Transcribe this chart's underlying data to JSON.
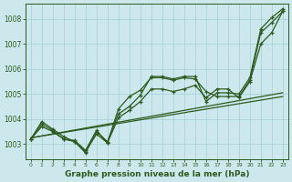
{
  "xlabel": "Graphe pression niveau de la mer (hPa)",
  "bg_color": "#cce8ec",
  "grid_color": "#aad4d8",
  "line_color": "#2d5a1e",
  "ylim": [
    1002.4,
    1008.6
  ],
  "xlim": [
    -0.5,
    23.5
  ],
  "yticks": [
    1003,
    1004,
    1005,
    1006,
    1007,
    1008
  ],
  "xticks": [
    0,
    1,
    2,
    3,
    4,
    5,
    6,
    7,
    8,
    9,
    10,
    11,
    12,
    13,
    14,
    15,
    16,
    17,
    18,
    19,
    20,
    21,
    22,
    23
  ],
  "series_with_markers": [
    [
      1003.2,
      1003.8,
      1003.55,
      1003.2,
      1003.15,
      1002.75,
      1003.55,
      1003.05,
      1004.4,
      1004.9,
      1005.15,
      1005.65,
      1005.65,
      1005.55,
      1005.65,
      1005.6,
      1005.1,
      1004.9,
      1004.9,
      1004.9,
      1005.55,
      1007.45,
      1007.85,
      1008.3
    ],
    [
      1003.2,
      1003.7,
      1003.5,
      1003.2,
      1003.1,
      1002.7,
      1003.4,
      1003.05,
      1004.05,
      1004.35,
      1004.7,
      1005.2,
      1005.2,
      1005.1,
      1005.2,
      1005.35,
      1004.85,
      1005.2,
      1005.2,
      1004.85,
      1005.5,
      1007.0,
      1007.45,
      1008.3
    ],
    [
      1003.2,
      1003.9,
      1003.6,
      1003.3,
      1003.1,
      1002.65,
      1003.5,
      1003.1,
      1004.2,
      1004.5,
      1004.95,
      1005.7,
      1005.7,
      1005.6,
      1005.7,
      1005.7,
      1004.7,
      1005.05,
      1005.05,
      1005.0,
      1005.65,
      1007.6,
      1008.05,
      1008.4
    ]
  ],
  "trend_lines": [
    [
      [
        0,
        23
      ],
      [
        1003.25,
        1004.9
      ]
    ],
    [
      [
        0,
        23
      ],
      [
        1003.25,
        1005.05
      ]
    ]
  ]
}
